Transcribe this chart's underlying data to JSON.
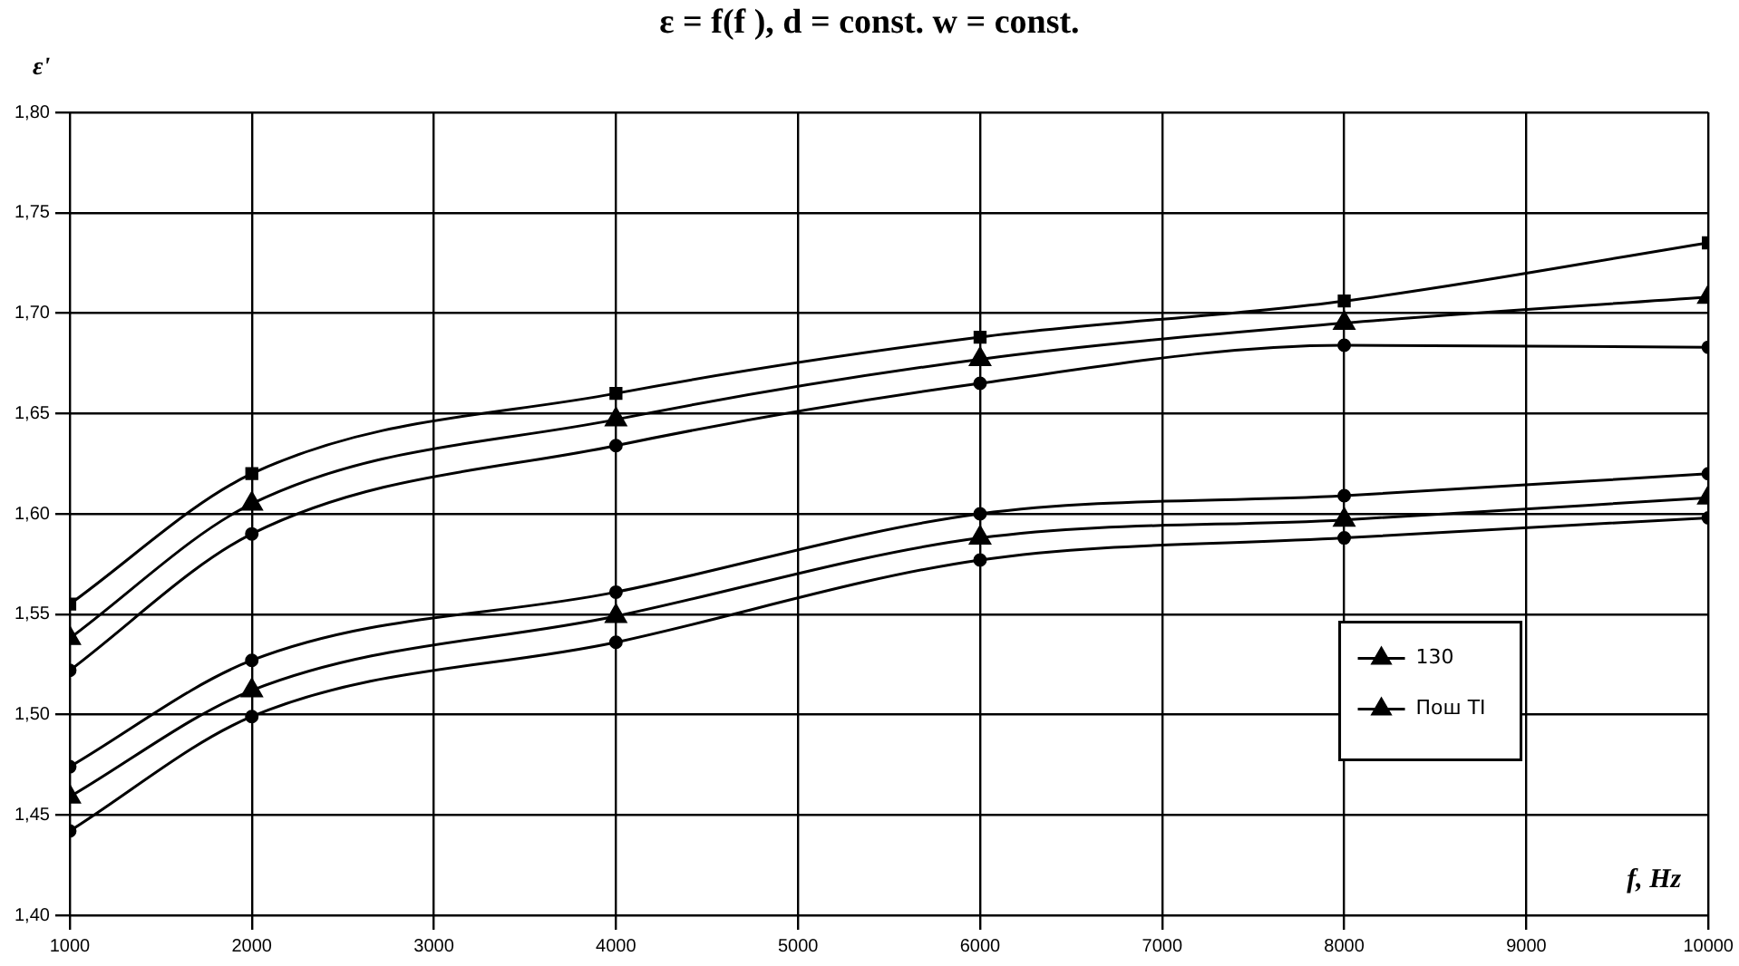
{
  "chart_data": {
    "type": "line",
    "title": "ε = f(f ), d = const. w = const.",
    "ylabel": "ε'",
    "xlabel": "f, Hz",
    "x": [
      1000,
      2000,
      4000,
      6000,
      8000,
      10000
    ],
    "series": [
      {
        "color": "#000000",
        "marker": "square",
        "values": [
          1.555,
          1.62,
          1.66,
          1.688,
          1.706,
          1.735
        ]
      },
      {
        "name": "130",
        "color": "#000000",
        "marker": "triangle",
        "values": [
          1.538,
          1.605,
          1.647,
          1.677,
          1.695,
          1.708
        ]
      },
      {
        "color": "#000000",
        "marker": "circle",
        "values": [
          1.522,
          1.59,
          1.634,
          1.665,
          1.684,
          1.683
        ]
      },
      {
        "color": "#000000",
        "marker": "circle",
        "values": [
          1.474,
          1.527,
          1.561,
          1.6,
          1.609,
          1.62
        ]
      },
      {
        "name": "Пош TI",
        "color": "#000000",
        "marker": "triangle",
        "values": [
          1.459,
          1.512,
          1.549,
          1.588,
          1.597,
          1.608
        ]
      },
      {
        "color": "#000000",
        "marker": "circle",
        "values": [
          1.442,
          1.499,
          1.536,
          1.577,
          1.588,
          1.598
        ]
      }
    ],
    "xlim": [
      1000,
      10000
    ],
    "xticks": [
      1000,
      2000,
      3000,
      4000,
      5000,
      6000,
      7000,
      8000,
      9000,
      10000
    ],
    "ylim": [
      1.4,
      1.8
    ],
    "yticks": [
      {
        "value": 1.4,
        "label": "1,40"
      },
      {
        "value": 1.45,
        "label": "1,45"
      },
      {
        "value": 1.5,
        "label": "1,50"
      },
      {
        "value": 1.55,
        "label": "1,55"
      },
      {
        "value": 1.6,
        "label": "1,60"
      },
      {
        "value": 1.65,
        "label": "1,65"
      },
      {
        "value": 1.7,
        "label": "1,70"
      },
      {
        "value": 1.75,
        "label": "1,75"
      },
      {
        "value": 1.8,
        "label": "1,80"
      }
    ],
    "grid": true,
    "legend": "bottom right",
    "line_style": "solid"
  }
}
